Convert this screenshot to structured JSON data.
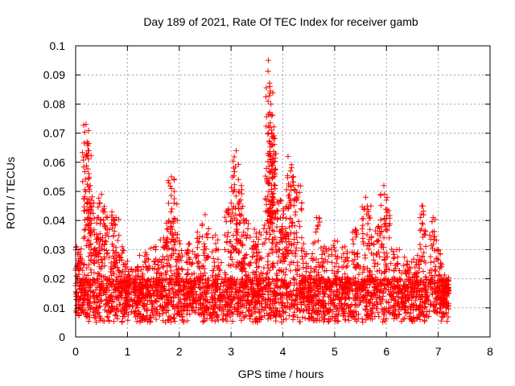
{
  "chart_data": {
    "type": "scatter",
    "title": "Day 189 of 2021, Rate Of TEC Index for receiver gamb",
    "xlabel": "GPS time / hours",
    "ylabel": "ROTI / TECUs",
    "xlim": [
      0,
      8
    ],
    "ylim": [
      0,
      0.1
    ],
    "xticks": [
      "0",
      "1",
      "2",
      "3",
      "4",
      "5",
      "6",
      "7",
      "8"
    ],
    "yticks": [
      "0",
      "0.01",
      "0.02",
      "0.03",
      "0.04",
      "0.05",
      "0.06",
      "0.07",
      "0.08",
      "0.09",
      "0.1"
    ],
    "grid": true,
    "marker": "+",
    "color": "#ff0000",
    "data_extent_hours": [
      0.0,
      7.2
    ],
    "series": [
      {
        "name": "ROTI",
        "note": "approximately 3000 dense samples between 0 and 7.2 h; representative peaks listed",
        "peaks": [
          [
            0.02,
            0.031
          ],
          [
            0.1,
            0.027
          ],
          [
            0.2,
            0.073
          ],
          [
            0.22,
            0.067
          ],
          [
            0.24,
            0.064
          ],
          [
            0.28,
            0.052
          ],
          [
            0.35,
            0.046
          ],
          [
            0.42,
            0.041
          ],
          [
            0.5,
            0.049
          ],
          [
            0.55,
            0.044
          ],
          [
            0.7,
            0.043
          ],
          [
            0.78,
            0.041
          ],
          [
            0.9,
            0.031
          ],
          [
            1.0,
            0.026
          ],
          [
            1.2,
            0.024
          ],
          [
            1.35,
            0.029
          ],
          [
            1.55,
            0.031
          ],
          [
            1.7,
            0.034
          ],
          [
            1.8,
            0.04
          ],
          [
            1.85,
            0.055
          ],
          [
            1.9,
            0.046
          ],
          [
            2.0,
            0.033
          ],
          [
            2.2,
            0.032
          ],
          [
            2.35,
            0.036
          ],
          [
            2.5,
            0.042
          ],
          [
            2.7,
            0.035
          ],
          [
            2.95,
            0.044
          ],
          [
            3.05,
            0.058
          ],
          [
            3.1,
            0.064
          ],
          [
            3.15,
            0.05
          ],
          [
            3.2,
            0.052
          ],
          [
            3.3,
            0.04
          ],
          [
            3.45,
            0.037
          ],
          [
            3.55,
            0.036
          ],
          [
            3.7,
            0.043
          ],
          [
            3.72,
            0.095
          ],
          [
            3.75,
            0.086
          ],
          [
            3.77,
            0.08
          ],
          [
            3.78,
            0.071
          ],
          [
            3.8,
            0.066
          ],
          [
            3.82,
            0.06
          ],
          [
            3.85,
            0.052
          ],
          [
            3.95,
            0.047
          ],
          [
            4.0,
            0.041
          ],
          [
            4.1,
            0.062
          ],
          [
            4.15,
            0.057
          ],
          [
            4.2,
            0.055
          ],
          [
            4.3,
            0.052
          ],
          [
            4.4,
            0.032
          ],
          [
            4.55,
            0.027
          ],
          [
            4.65,
            0.041
          ],
          [
            4.8,
            0.031
          ],
          [
            5.0,
            0.033
          ],
          [
            5.2,
            0.031
          ],
          [
            5.4,
            0.037
          ],
          [
            5.6,
            0.048
          ],
          [
            5.7,
            0.045
          ],
          [
            5.85,
            0.038
          ],
          [
            5.95,
            0.052
          ],
          [
            6.0,
            0.047
          ],
          [
            6.2,
            0.03
          ],
          [
            6.4,
            0.026
          ],
          [
            6.6,
            0.028
          ],
          [
            6.7,
            0.045
          ],
          [
            6.9,
            0.041
          ],
          [
            7.0,
            0.03
          ],
          [
            7.1,
            0.02
          ],
          [
            7.2,
            0.018
          ]
        ],
        "baseline_range": [
          0.005,
          0.02
        ]
      }
    ]
  }
}
